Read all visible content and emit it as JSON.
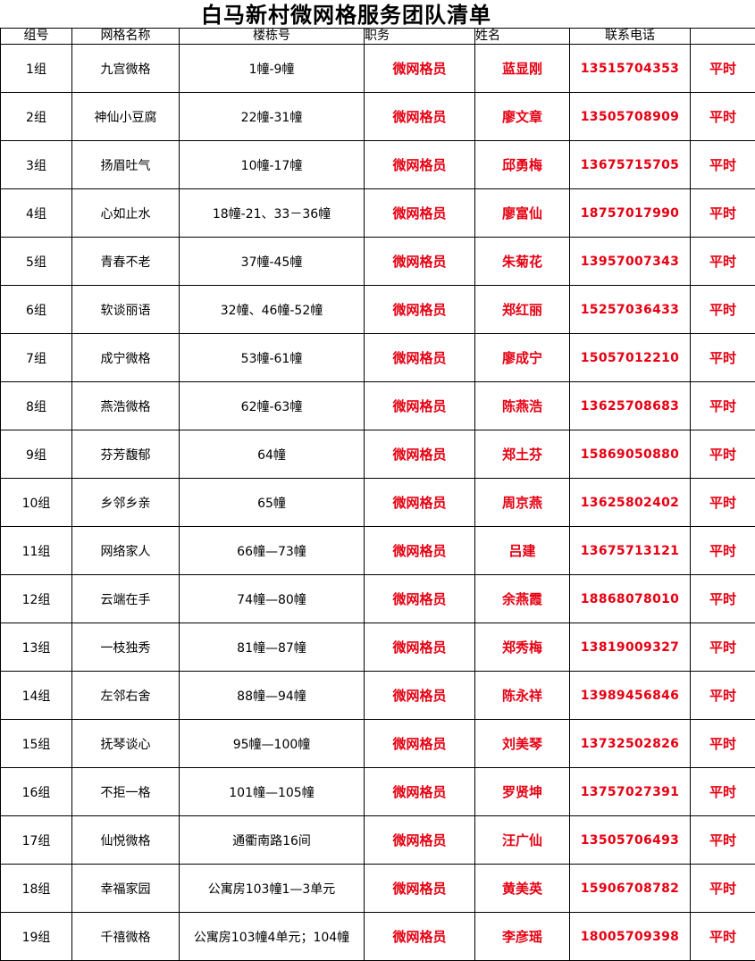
{
  "title": "白马新村微网格服务团队清单",
  "headers": {
    "group": "组号",
    "name": "网格名称",
    "buildings": "楼栋号",
    "role": "职务",
    "person": "姓名",
    "phone": "联系电话",
    "time": ""
  },
  "rows": [
    {
      "group": "1组",
      "name": "九宫微格",
      "buildings": "1幢-9幢",
      "role": "微网格员",
      "person": "蓝显刚",
      "phone": "13515704353",
      "time": "平时"
    },
    {
      "group": "2组",
      "name": "神仙小豆腐",
      "buildings": "22幢-31幢",
      "role": "微网格员",
      "person": "廖文章",
      "phone": "13505708909",
      "time": "平时"
    },
    {
      "group": "3组",
      "name": "扬眉吐气",
      "buildings": "10幢-17幢",
      "role": "微网格员",
      "person": "邱勇梅",
      "phone": "13675715705",
      "time": "平时"
    },
    {
      "group": "4组",
      "name": "心如止水",
      "buildings": "18幢-21、33－36幢",
      "role": "微网格员",
      "person": "廖富仙",
      "phone": "18757017990",
      "time": "平时"
    },
    {
      "group": "5组",
      "name": "青春不老",
      "buildings": "37幢-45幢",
      "role": "微网格员",
      "person": "朱菊花",
      "phone": "13957007343",
      "time": "平时"
    },
    {
      "group": "6组",
      "name": "软谈丽语",
      "buildings": "32幢、46幢-52幢",
      "role": "微网格员",
      "person": "郑红丽",
      "phone": "15257036433",
      "time": "平时"
    },
    {
      "group": "7组",
      "name": "成宁微格",
      "buildings": "53幢-61幢",
      "role": "微网格员",
      "person": "廖成宁",
      "phone": "15057012210",
      "time": "平时"
    },
    {
      "group": "8组",
      "name": "燕浩微格",
      "buildings": "62幢-63幢",
      "role": "微网格员",
      "person": "陈燕浩",
      "phone": "13625708683",
      "time": "平时"
    },
    {
      "group": "9组",
      "name": "芬芳馥郁",
      "buildings": "64幢",
      "role": "微网格员",
      "person": "郑土芬",
      "phone": "15869050880",
      "time": "平时"
    },
    {
      "group": "10组",
      "name": "乡邻乡亲",
      "buildings": "65幢",
      "role": "微网格员",
      "person": "周京燕",
      "phone": "13625802402",
      "time": "平时"
    },
    {
      "group": "11组",
      "name": "网络家人",
      "buildings": "66幢—73幢",
      "role": "微网格员",
      "person": "吕建",
      "phone": "13675713121",
      "time": "平时"
    },
    {
      "group": "12组",
      "name": "云端在手",
      "buildings": "74幢—80幢",
      "role": "微网格员",
      "person": "余燕霞",
      "phone": "18868078010",
      "time": "平时"
    },
    {
      "group": "13组",
      "name": "一枝独秀",
      "buildings": "81幢—87幢",
      "role": "微网格员",
      "person": "郑秀梅",
      "phone": "13819009327",
      "time": "平时"
    },
    {
      "group": "14组",
      "name": "左邻右舍",
      "buildings": "88幢—94幢",
      "role": "微网格员",
      "person": "陈永祥",
      "phone": "13989456846",
      "time": "平时"
    },
    {
      "group": "15组",
      "name": "抚琴谈心",
      "buildings": "95幢—100幢",
      "role": "微网格员",
      "person": "刘美琴",
      "phone": "13732502826",
      "time": "平时"
    },
    {
      "group": "16组",
      "name": "不拒一格",
      "buildings": "101幢—105幢",
      "role": "微网格员",
      "person": "罗贤坤",
      "phone": "13757027391",
      "time": "平时"
    },
    {
      "group": "17组",
      "name": "仙悦微格",
      "buildings": "通衢南路16间",
      "role": "微网格员",
      "person": "汪广仙",
      "phone": "13505706493",
      "time": "平时"
    },
    {
      "group": "18组",
      "name": "幸福家园",
      "buildings": "公寓房103幢1—3单元",
      "role": "微网格员",
      "person": "黄美英",
      "phone": "15906708782",
      "time": "平时"
    },
    {
      "group": "19组",
      "name": "千禧微格",
      "buildings": "公寓房103幢4单元；104幢",
      "role": "微网格员",
      "person": "李彦瑶",
      "phone": "18005709398",
      "time": "平时"
    }
  ],
  "colors": {
    "accent_red": "#e60012",
    "border": "#000000",
    "background": "#ffffff"
  }
}
